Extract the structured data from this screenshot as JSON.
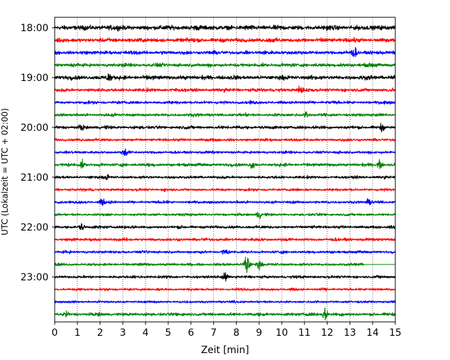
{
  "chart_data": {
    "type": "line",
    "title": "",
    "xlabel": "Zeit  [min]",
    "ylabel": "UTC (Lokalzeit = UTC + 02:00)",
    "xlim": [
      0,
      15
    ],
    "x_ticks": [
      "0",
      "1",
      "2",
      "3",
      "4",
      "5",
      "6",
      "7",
      "8",
      "9",
      "10",
      "11",
      "12",
      "13",
      "14",
      "15"
    ],
    "y_ticks": [
      "18:00",
      "19:00",
      "20:00",
      "21:00",
      "22:00",
      "23:00"
    ],
    "grid": "vertical-dotted",
    "legend": "none",
    "rows": [
      {
        "start": "18:00",
        "color": "#000000",
        "amplitude": 0.62,
        "events": []
      },
      {
        "start": "18:15",
        "color": "#ff0000",
        "amplitude": 0.55,
        "events": []
      },
      {
        "start": "18:30",
        "color": "#0000ff",
        "amplitude": 0.5,
        "events": [
          {
            "x": 13.2,
            "amp": 1.1
          }
        ]
      },
      {
        "start": "18:45",
        "color": "#008000",
        "amplitude": 0.48,
        "events": []
      },
      {
        "start": "19:00",
        "color": "#000000",
        "amplitude": 0.55,
        "events": [
          {
            "x": 2.4,
            "amp": 1.1
          }
        ]
      },
      {
        "start": "19:15",
        "color": "#ff0000",
        "amplitude": 0.45,
        "events": [
          {
            "x": 10.8,
            "amp": 0.9
          }
        ]
      },
      {
        "start": "19:30",
        "color": "#0000ff",
        "amplitude": 0.4,
        "events": []
      },
      {
        "start": "19:45",
        "color": "#008000",
        "amplitude": 0.4,
        "events": [
          {
            "x": 11.1,
            "amp": 0.9
          }
        ]
      },
      {
        "start": "20:00",
        "color": "#000000",
        "amplitude": 0.42,
        "events": [
          {
            "x": 1.2,
            "amp": 0.8
          },
          {
            "x": 14.4,
            "amp": 0.9
          }
        ]
      },
      {
        "start": "20:15",
        "color": "#ff0000",
        "amplitude": 0.38,
        "events": []
      },
      {
        "start": "20:30",
        "color": "#0000ff",
        "amplitude": 0.36,
        "events": [
          {
            "x": 3.1,
            "amp": 0.9
          }
        ]
      },
      {
        "start": "20:45",
        "color": "#008000",
        "amplitude": 0.42,
        "events": [
          {
            "x": 1.2,
            "amp": 0.9
          },
          {
            "x": 8.7,
            "amp": 0.9
          },
          {
            "x": 14.3,
            "amp": 1.0
          }
        ]
      },
      {
        "start": "21:00",
        "color": "#000000",
        "amplitude": 0.36,
        "events": [
          {
            "x": 2.3,
            "amp": 0.7
          }
        ]
      },
      {
        "start": "21:15",
        "color": "#ff0000",
        "amplitude": 0.36,
        "events": []
      },
      {
        "start": "21:30",
        "color": "#0000ff",
        "amplitude": 0.36,
        "events": [
          {
            "x": 2.1,
            "amp": 0.8
          },
          {
            "x": 13.8,
            "amp": 0.7
          }
        ]
      },
      {
        "start": "21:45",
        "color": "#008000",
        "amplitude": 0.34,
        "events": [
          {
            "x": 9.0,
            "amp": 0.9
          }
        ]
      },
      {
        "start": "22:00",
        "color": "#000000",
        "amplitude": 0.38,
        "events": [
          {
            "x": 1.2,
            "amp": 0.8
          }
        ]
      },
      {
        "start": "22:15",
        "color": "#ff0000",
        "amplitude": 0.4,
        "events": []
      },
      {
        "start": "22:30",
        "color": "#0000ff",
        "amplitude": 0.36,
        "events": [
          {
            "x": 7.5,
            "amp": 0.8
          }
        ]
      },
      {
        "start": "22:45",
        "color": "#008000",
        "amplitude": 0.36,
        "events": [
          {
            "x": 8.45,
            "amp": 3.6
          },
          {
            "x": 9.0,
            "amp": 1.0
          }
        ],
        "end_flat": 13.6
      },
      {
        "start": "23:00",
        "color": "#000000",
        "amplitude": 0.36,
        "events": [
          {
            "x": 7.5,
            "amp": 1.1
          }
        ]
      },
      {
        "start": "23:15",
        "color": "#ff0000",
        "amplitude": 0.34,
        "events": []
      },
      {
        "start": "23:30",
        "color": "#0000ff",
        "amplitude": 0.32,
        "events": []
      },
      {
        "start": "23:45",
        "color": "#008000",
        "amplitude": 0.42,
        "events": [
          {
            "x": 0.5,
            "amp": 0.8
          },
          {
            "x": 11.9,
            "amp": 1.5
          }
        ]
      }
    ]
  }
}
